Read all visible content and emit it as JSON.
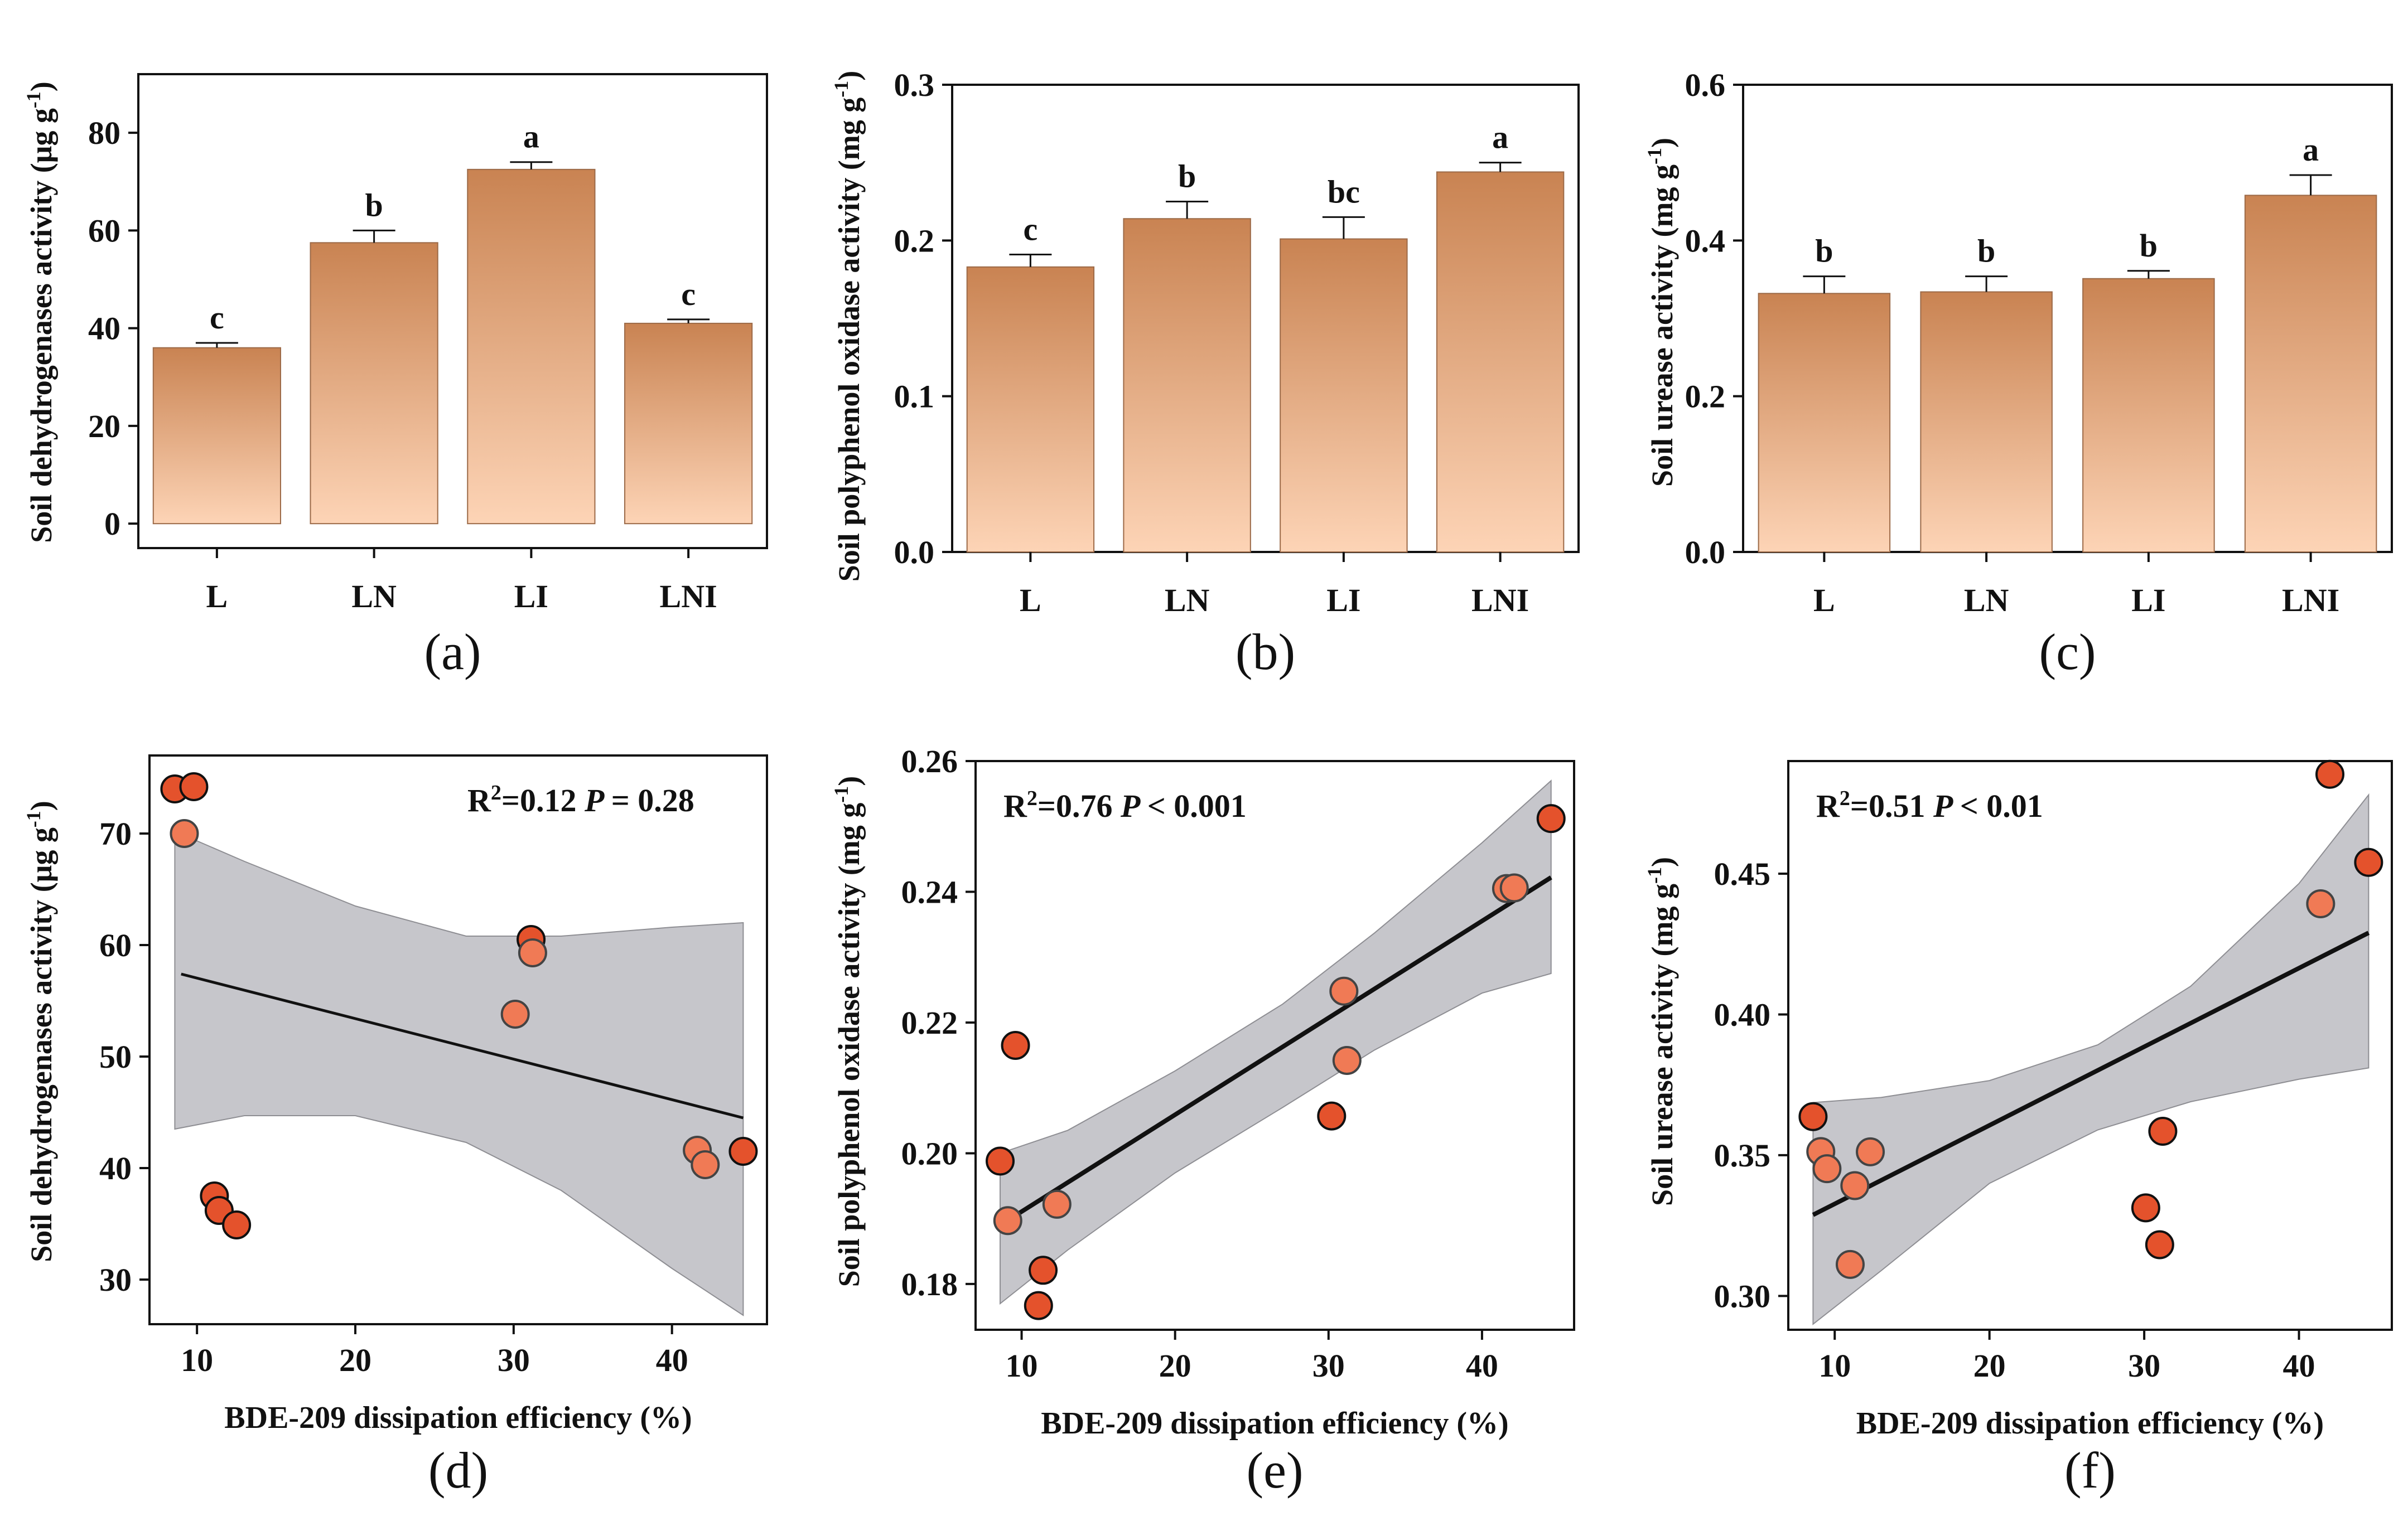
{
  "colors": {
    "bar_top": "#c98352",
    "bar_bottom": "#fdd4b6",
    "point": "#e4522c",
    "point_light": "#f07a55",
    "band": "#c6c6cb",
    "axis": "#111111"
  },
  "chart_data": [
    {
      "id": "a",
      "type": "bar",
      "panel_label": "(a)",
      "ylabel": "Soil dehydrogenases activity (μg g⁻¹)",
      "xlabel": "",
      "categories": [
        "L",
        "LN",
        "LI",
        "LNI"
      ],
      "values": [
        36,
        57.5,
        72.5,
        41
      ],
      "errors": [
        1,
        2.5,
        1.5,
        0.8
      ],
      "letters": [
        "c",
        "b",
        "a",
        "c"
      ],
      "ylim": [
        -5,
        92
      ],
      "yticks": [
        0,
        20,
        40,
        60,
        80
      ],
      "ytick_labels": [
        "0",
        "20",
        "40",
        "60",
        "80"
      ]
    },
    {
      "id": "b",
      "type": "bar",
      "panel_label": "(b)",
      "ylabel": "Soil polyphenol oxidase activity (mg g⁻¹)",
      "xlabel": "",
      "categories": [
        "L",
        "LN",
        "LI",
        "LNI"
      ],
      "values": [
        0.183,
        0.214,
        0.201,
        0.244
      ],
      "errors": [
        0.008,
        0.011,
        0.014,
        0.006
      ],
      "letters": [
        "c",
        "b",
        "bc",
        "a"
      ],
      "ylim": [
        0,
        0.3
      ],
      "yticks": [
        0,
        0.1,
        0.2,
        0.3
      ],
      "ytick_labels": [
        "0.0",
        "0.1",
        "0.2",
        "0.3"
      ]
    },
    {
      "id": "c",
      "type": "bar",
      "panel_label": "(c)",
      "ylabel": "Soil urease activity (mg g⁻¹)",
      "xlabel": "",
      "categories": [
        "L",
        "LN",
        "LI",
        "LNI"
      ],
      "values": [
        0.332,
        0.334,
        0.351,
        0.458
      ],
      "errors": [
        0.022,
        0.02,
        0.01,
        0.026
      ],
      "letters": [
        "b",
        "b",
        "b",
        "a"
      ],
      "ylim": [
        0,
        0.6
      ],
      "yticks": [
        0,
        0.2,
        0.4,
        0.6
      ],
      "ytick_labels": [
        "0.0",
        "0.2",
        "0.4",
        "0.6"
      ]
    },
    {
      "id": "d",
      "type": "scatter",
      "panel_label": "(d)",
      "ylabel": "Soil dehydrogenases activity (μg g⁻¹)",
      "xlabel": "BDE-209 dissipation efficiency (%)",
      "stat_r2": "R²=0.12",
      "stat_p_label": "P",
      "stat_p_value": "= 0.28",
      "xlim": [
        7,
        46
      ],
      "ylim": [
        26,
        77
      ],
      "xticks": [
        10,
        20,
        30,
        40
      ],
      "xtick_labels": [
        "10",
        "20",
        "30",
        "40"
      ],
      "yticks": [
        30,
        40,
        50,
        60,
        70
      ],
      "ytick_labels": [
        "30",
        "40",
        "50",
        "60",
        "70"
      ],
      "points": [
        {
          "x": 8.6,
          "y": 74.0,
          "light": false
        },
        {
          "x": 9.8,
          "y": 74.2,
          "light": false
        },
        {
          "x": 9.2,
          "y": 70.0,
          "light": true
        },
        {
          "x": 11.1,
          "y": 37.5,
          "light": false
        },
        {
          "x": 11.4,
          "y": 36.2,
          "light": false
        },
        {
          "x": 12.5,
          "y": 34.9,
          "light": false
        },
        {
          "x": 30.1,
          "y": 53.8,
          "light": true
        },
        {
          "x": 31.1,
          "y": 60.5,
          "light": false
        },
        {
          "x": 31.2,
          "y": 59.3,
          "light": true
        },
        {
          "x": 41.6,
          "y": 41.6,
          "light": true
        },
        {
          "x": 42.1,
          "y": 40.3,
          "light": true
        },
        {
          "x": 44.5,
          "y": 41.5,
          "light": false
        }
      ],
      "fit": {
        "x": [
          9,
          44.5
        ],
        "y": [
          57.4,
          44.5
        ]
      },
      "band": {
        "x": [
          8.6,
          13,
          20,
          27,
          33,
          40,
          44.5
        ],
        "upper": [
          70.2,
          67.5,
          63.5,
          60.8,
          60.8,
          61.6,
          62.0
        ],
        "lower": [
          43.5,
          44.7,
          44.7,
          42.3,
          38.0,
          31.0,
          26.8
        ]
      }
    },
    {
      "id": "e",
      "type": "scatter",
      "panel_label": "(e)",
      "ylabel": "Soil polyphenol oxidase activity (mg g⁻¹)",
      "xlabel": "BDE-209 dissipation efficiency (%)",
      "stat_r2": "R²=0.76",
      "stat_p_label": "P",
      "stat_p_value": "< 0.001",
      "xlim": [
        7,
        46
      ],
      "ylim": [
        0.173,
        0.26
      ],
      "xticks": [
        10,
        20,
        30,
        40
      ],
      "xtick_labels": [
        "10",
        "20",
        "30",
        "40"
      ],
      "yticks": [
        0.18,
        0.2,
        0.22,
        0.24,
        0.26
      ],
      "ytick_labels": [
        "0.18",
        "0.20",
        "0.22",
        "0.24",
        "0.26"
      ],
      "points": [
        {
          "x": 8.6,
          "y": 0.1988,
          "light": false
        },
        {
          "x": 9.1,
          "y": 0.1897,
          "light": true
        },
        {
          "x": 9.6,
          "y": 0.2165,
          "light": false
        },
        {
          "x": 11.1,
          "y": 0.1767,
          "light": false
        },
        {
          "x": 11.4,
          "y": 0.1821,
          "light": false
        },
        {
          "x": 12.3,
          "y": 0.1922,
          "light": true
        },
        {
          "x": 30.2,
          "y": 0.2057,
          "light": false
        },
        {
          "x": 31.0,
          "y": 0.2248,
          "light": true
        },
        {
          "x": 31.2,
          "y": 0.2142,
          "light": true
        },
        {
          "x": 41.6,
          "y": 0.2405,
          "light": true
        },
        {
          "x": 42.1,
          "y": 0.2406,
          "light": true
        },
        {
          "x": 44.5,
          "y": 0.2512,
          "light": false
        }
      ],
      "fit": {
        "x": [
          8.8,
          44.5
        ],
        "y": [
          0.1893,
          0.2422
        ]
      },
      "band": {
        "x": [
          8.6,
          13,
          20,
          27,
          33,
          40,
          44.5
        ],
        "upper": [
          0.2,
          0.2035,
          0.2126,
          0.2228,
          0.2337,
          0.2475,
          0.257
        ],
        "lower": [
          0.177,
          0.1852,
          0.197,
          0.207,
          0.2158,
          0.2245,
          0.2275
        ]
      }
    },
    {
      "id": "f",
      "type": "scatter",
      "panel_label": "(f)",
      "ylabel": "Soil urease activity (mg g⁻¹)",
      "xlabel": "BDE-209 dissipation efficiency (%)",
      "stat_r2": "R²=0.51",
      "stat_p_label": "P",
      "stat_p_value": "< 0.01",
      "xlim": [
        7,
        46
      ],
      "ylim": [
        0.288,
        0.49
      ],
      "xticks": [
        10,
        20,
        30,
        40
      ],
      "xtick_labels": [
        "10",
        "20",
        "30",
        "40"
      ],
      "yticks": [
        0.3,
        0.35,
        0.4,
        0.45
      ],
      "ytick_labels": [
        "0.30",
        "0.35",
        "0.40",
        "0.45"
      ],
      "points": [
        {
          "x": 8.6,
          "y": 0.3637,
          "light": false
        },
        {
          "x": 9.1,
          "y": 0.3513,
          "light": true
        },
        {
          "x": 9.5,
          "y": 0.3452,
          "light": true
        },
        {
          "x": 11.0,
          "y": 0.3112,
          "light": true
        },
        {
          "x": 11.3,
          "y": 0.3392,
          "light": true
        },
        {
          "x": 12.3,
          "y": 0.3512,
          "light": true
        },
        {
          "x": 30.1,
          "y": 0.3313,
          "light": false
        },
        {
          "x": 31.0,
          "y": 0.3182,
          "light": false
        },
        {
          "x": 31.2,
          "y": 0.3585,
          "light": false
        },
        {
          "x": 41.4,
          "y": 0.4393,
          "light": true
        },
        {
          "x": 42.0,
          "y": 0.4853,
          "light": false
        },
        {
          "x": 44.5,
          "y": 0.454,
          "light": false
        }
      ],
      "fit": {
        "x": [
          8.6,
          44.5
        ],
        "y": [
          0.3288,
          0.429
        ]
      },
      "band": {
        "x": [
          8.6,
          13,
          20,
          27,
          33,
          40,
          44.5
        ],
        "upper": [
          0.3687,
          0.3705,
          0.3765,
          0.3892,
          0.41,
          0.4465,
          0.478
        ],
        "lower": [
          0.29,
          0.309,
          0.34,
          0.359,
          0.369,
          0.377,
          0.381
        ]
      }
    }
  ]
}
